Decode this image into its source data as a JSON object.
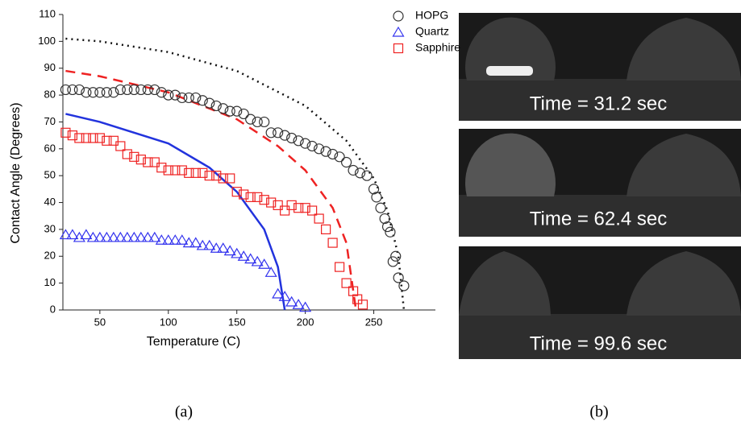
{
  "chart_data": {
    "type": "scatter",
    "xlabel": "Temperature (C)",
    "ylabel": "Contact Angle (Degrees)",
    "xlim": [
      23,
      295
    ],
    "ylim": [
      0,
      110
    ],
    "xticks": [
      50,
      100,
      150,
      200,
      250
    ],
    "yticks": [
      0,
      10,
      20,
      30,
      40,
      50,
      60,
      70,
      80,
      90,
      100,
      110
    ],
    "legend": "upper right",
    "series": [
      {
        "name": "HOPG",
        "color": "#333333",
        "marker": "circle",
        "x": [
          25,
          30,
          35,
          40,
          45,
          50,
          55,
          60,
          65,
          70,
          75,
          80,
          85,
          90,
          95,
          100,
          105,
          110,
          115,
          120,
          125,
          130,
          135,
          140,
          145,
          150,
          155,
          160,
          165,
          170,
          175,
          180,
          185,
          190,
          195,
          200,
          205,
          210,
          215,
          220,
          225,
          230,
          235,
          240,
          245,
          250,
          252,
          255,
          258,
          260,
          262,
          264,
          266,
          268,
          272
        ],
        "values": [
          82,
          82,
          82,
          81,
          81,
          81,
          81,
          81,
          82,
          82,
          82,
          82,
          82,
          82,
          81,
          80,
          80,
          79,
          79,
          79,
          78,
          77,
          76,
          75,
          74,
          74,
          73,
          71,
          70,
          70,
          66,
          66,
          65,
          64,
          63,
          62,
          61,
          60,
          59,
          58,
          57,
          55,
          52,
          51,
          50,
          45,
          42,
          38,
          34,
          31,
          29,
          18,
          20,
          12,
          9
        ]
      },
      {
        "name": "Quartz",
        "color": "#3333ee",
        "marker": "triangle",
        "x": [
          25,
          30,
          35,
          40,
          45,
          50,
          55,
          60,
          65,
          70,
          75,
          80,
          85,
          90,
          95,
          100,
          105,
          110,
          115,
          120,
          125,
          130,
          135,
          140,
          145,
          150,
          155,
          160,
          165,
          170,
          175,
          180,
          185,
          190,
          195,
          200
        ],
        "values": [
          28,
          28,
          27,
          28,
          27,
          27,
          27,
          27,
          27,
          27,
          27,
          27,
          27,
          27,
          26,
          26,
          26,
          26,
          25,
          25,
          24,
          24,
          23,
          23,
          22,
          21,
          20,
          19,
          18,
          17,
          14,
          6,
          5,
          3,
          2,
          1
        ]
      },
      {
        "name": "Sapphire",
        "color": "#ee2222",
        "marker": "square",
        "x": [
          25,
          30,
          35,
          40,
          45,
          50,
          55,
          60,
          65,
          70,
          75,
          80,
          85,
          90,
          95,
          100,
          105,
          110,
          115,
          120,
          125,
          130,
          135,
          140,
          145,
          150,
          155,
          160,
          165,
          170,
          175,
          180,
          185,
          190,
          195,
          200,
          205,
          210,
          215,
          220,
          225,
          230,
          235,
          238,
          242
        ],
        "values": [
          66,
          65,
          64,
          64,
          64,
          64,
          63,
          63,
          61,
          58,
          57,
          56,
          55,
          55,
          53,
          52,
          52,
          52,
          51,
          51,
          51,
          50,
          50,
          49,
          49,
          44,
          43,
          42,
          42,
          41,
          40,
          39,
          37,
          39,
          38,
          38,
          37,
          34,
          30,
          25,
          16,
          10,
          7,
          4,
          2
        ]
      }
    ],
    "fits": [
      {
        "color": "#111111",
        "dash": "2,5",
        "x": [
          25,
          50,
          100,
          150,
          200,
          230,
          250,
          260,
          268,
          272
        ],
        "values": [
          101,
          100,
          96,
          89,
          76,
          63,
          49,
          37,
          20,
          0
        ]
      },
      {
        "color": "#ee2222",
        "dash": "12,8",
        "x": [
          25,
          50,
          100,
          150,
          180,
          200,
          220,
          230,
          237
        ],
        "values": [
          89,
          87,
          81,
          71,
          61,
          52,
          38,
          25,
          0
        ]
      },
      {
        "color": "#2233dd",
        "dash": "",
        "x": [
          25,
          50,
          100,
          130,
          150,
          170,
          180,
          185
        ],
        "values": [
          73,
          70,
          62,
          53,
          44,
          30,
          16,
          0
        ]
      }
    ]
  },
  "panel_b": {
    "labels": [
      "Time = 31.2 sec",
      "Time = 62.4 sec",
      "Time = 99.6 sec"
    ]
  },
  "captions": [
    "(a)",
    "(b)"
  ]
}
